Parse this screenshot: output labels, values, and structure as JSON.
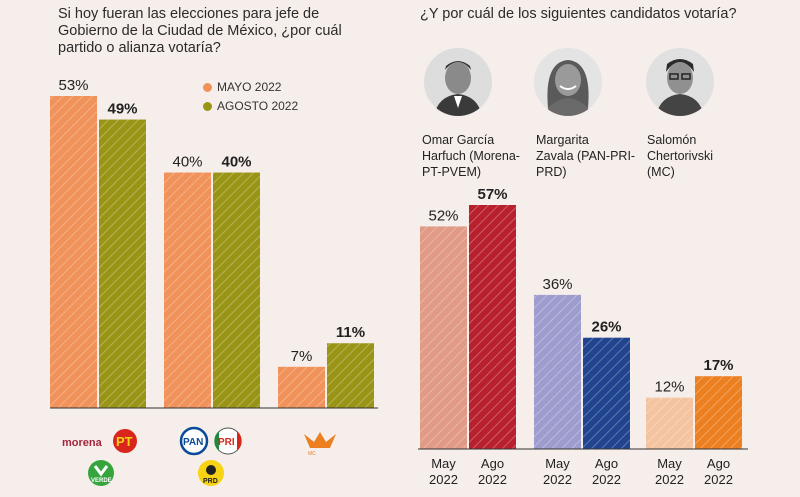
{
  "chart_data": [
    {
      "type": "bar",
      "title": "Si hoy fueran las elecciones para jefe de Gobierno de la Ciudad de México, ¿por cuál partido o alianza votaría?",
      "categories": [
        "morena-pt-verde",
        "pan-pri-prd",
        "mc"
      ],
      "series": [
        {
          "name": "MAYO 2022",
          "values": [
            53,
            40,
            7
          ],
          "labels": [
            "53%",
            "40%",
            "7%"
          ],
          "color": "#f0925a"
        },
        {
          "name": "AGOSTO 2022",
          "values": [
            49,
            40,
            11
          ],
          "labels": [
            "49%",
            "40%",
            "11%"
          ],
          "color": "#9a9416"
        }
      ],
      "ylim": [
        0,
        53
      ],
      "legend": "top-right"
    },
    {
      "type": "bar",
      "title": "¿Y por cuál de los siguientes candidatos votaría?",
      "candidates": [
        {
          "name": "Omar García Harfuch (Morena-PT-PVEM)",
          "name_lines": [
            "Omar García",
            "Harfuch (Morena-",
            "PT-PVEM)"
          ],
          "values": [
            52,
            57
          ],
          "labels": [
            "52%",
            "57%"
          ],
          "colors": [
            "#e09a86",
            "#b8202e"
          ]
        },
        {
          "name": "Margarita Zavala (PAN-PRI-PRD)",
          "name_lines": [
            "Margarita",
            "Zavala (PAN-PRI-",
            "PRD)"
          ],
          "values": [
            36,
            26
          ],
          "labels": [
            "36%",
            "26%"
          ],
          "colors": [
            "#9e9ccd",
            "#21448f"
          ]
        },
        {
          "name": "Salomón Chertorivski (MC)",
          "name_lines": [
            "Salomón",
            "Chertorivski",
            "(MC)"
          ],
          "values": [
            12,
            17
          ],
          "labels": [
            "12%",
            "17%"
          ],
          "colors": [
            "#f4c3a0",
            "#ec7f20"
          ]
        }
      ],
      "x_ticks": [
        [
          "May",
          "2022"
        ],
        [
          "Ago",
          "2022"
        ]
      ],
      "ylim": [
        0,
        57
      ]
    }
  ],
  "logos": {
    "left_1": [
      "morena",
      "PT",
      "VERDE"
    ],
    "left_2": [
      "PAN",
      "PRI",
      "PRD"
    ],
    "left_3": [
      "MC"
    ]
  }
}
